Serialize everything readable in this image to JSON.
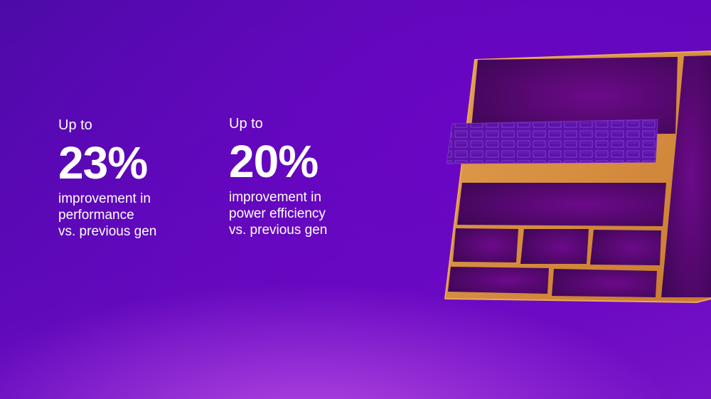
{
  "stats": [
    {
      "prefix": "Up to",
      "value": "23%",
      "lines": [
        "improvement in",
        "performance",
        "vs. previous gen"
      ]
    },
    {
      "prefix": "Up to",
      "value": "20%",
      "lines": [
        "improvement in",
        "power efficiency",
        "vs. previous gen"
      ]
    }
  ],
  "colors": {
    "background": "#5c08b8",
    "chip_frame": "#d9913f",
    "chip_block": "#45065e"
  }
}
